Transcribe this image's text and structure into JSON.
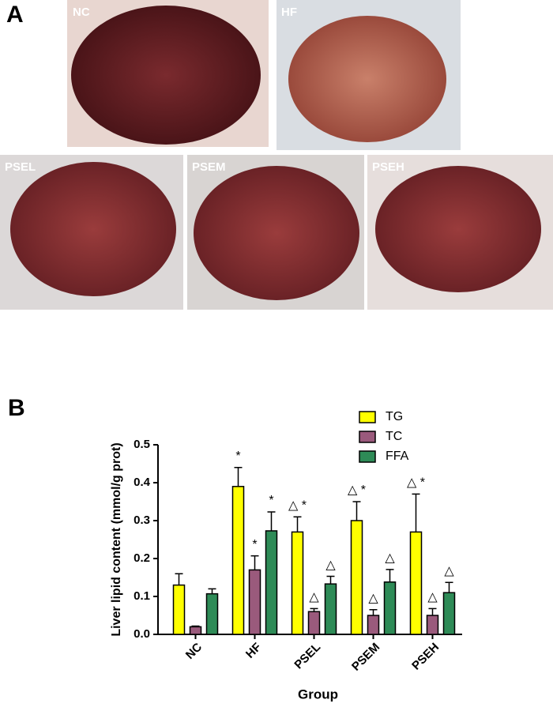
{
  "panels": {
    "a": "A",
    "b": "B"
  },
  "photos": [
    "NC",
    "HF",
    "PSEL",
    "PSEM",
    "PSEH"
  ],
  "chart_data": {
    "type": "bar",
    "ylabel": "Liver lipid content (mmol/g prot)",
    "xlabel": "Group",
    "categories": [
      "NC",
      "HF",
      "PSEL",
      "PSEM",
      "PSEH"
    ],
    "ylim": [
      0,
      0.5
    ],
    "yticks": [
      {
        "value": 0,
        "label": "0.0"
      },
      0.1,
      0.2,
      0.3,
      0.4,
      0.5
    ],
    "legend": "upper right",
    "series": [
      {
        "name": "TG",
        "color": "#ffff00",
        "values": [
          0.13,
          0.39,
          0.27,
          0.3,
          0.27
        ],
        "errors": [
          0.03,
          0.05,
          0.04,
          0.05,
          0.1
        ],
        "annotations": [
          null,
          "*",
          "△ *",
          "△ *",
          "△ *"
        ]
      },
      {
        "name": "TC",
        "color": "#9a5a7c",
        "values": [
          0.02,
          0.17,
          0.06,
          0.05,
          0.05
        ],
        "errors": [
          0.002,
          0.037,
          0.008,
          0.015,
          0.018
        ],
        "annotations": [
          null,
          "*",
          "△",
          "△",
          "△"
        ]
      },
      {
        "name": "FFA",
        "color": "#2e8b57",
        "values": [
          0.107,
          0.273,
          0.133,
          0.138,
          0.11
        ],
        "errors": [
          0.013,
          0.05,
          0.02,
          0.033,
          0.027
        ],
        "annotations": [
          null,
          "*",
          "△",
          "△",
          "△"
        ]
      }
    ]
  }
}
